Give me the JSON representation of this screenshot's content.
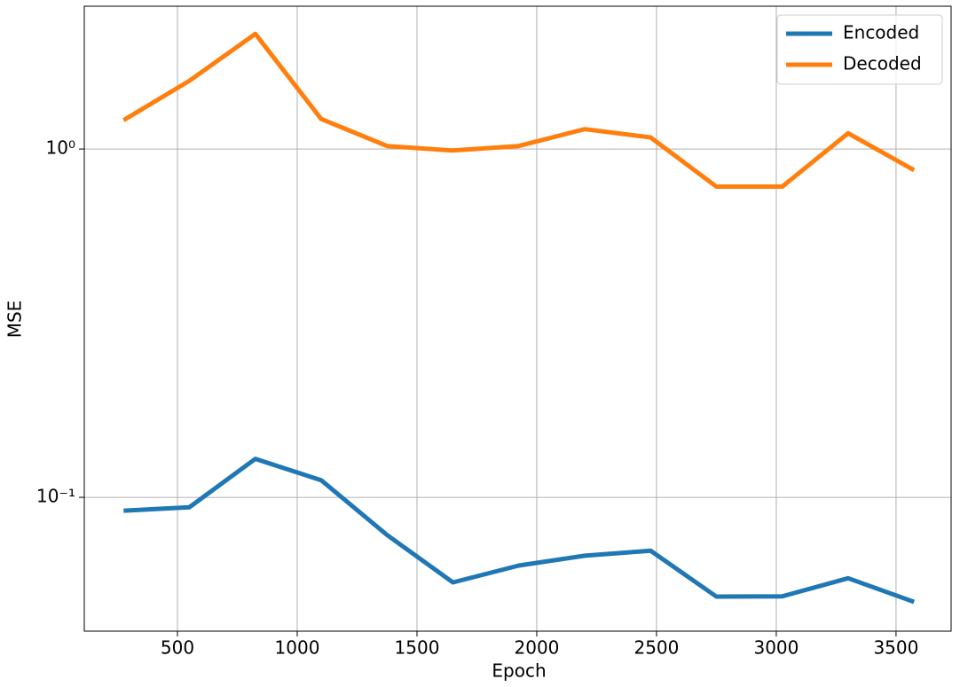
{
  "chart_data": {
    "type": "line",
    "xlabel": "Epoch",
    "ylabel": "MSE",
    "x": [
      275,
      550,
      825,
      1100,
      1375,
      1650,
      1925,
      2200,
      2475,
      2750,
      3025,
      3300,
      3575
    ],
    "series": [
      {
        "name": "Encoded",
        "color": "#1f77b4",
        "values": [
          0.0916,
          0.0937,
          0.129,
          0.112,
          0.078,
          0.057,
          0.0637,
          0.068,
          0.0703,
          0.0519,
          0.052,
          0.0586,
          0.0501
        ]
      },
      {
        "name": "Decoded",
        "color": "#ff7f0e",
        "values": [
          1.21,
          1.57,
          2.14,
          1.22,
          1.02,
          0.99,
          1.02,
          1.14,
          1.08,
          0.78,
          0.78,
          1.11,
          0.87
        ]
      }
    ],
    "xlim": [
      111,
      3730
    ],
    "xticks": [
      500,
      1000,
      1500,
      2000,
      2500,
      3000,
      3500
    ],
    "ylim": [
      0.0413,
      2.57
    ],
    "yscale": "log",
    "yticks": [
      {
        "value": 0.1,
        "label": "10⁻¹"
      },
      {
        "value": 1,
        "label": "10⁰"
      }
    ],
    "grid": true,
    "legend": "upper right"
  }
}
